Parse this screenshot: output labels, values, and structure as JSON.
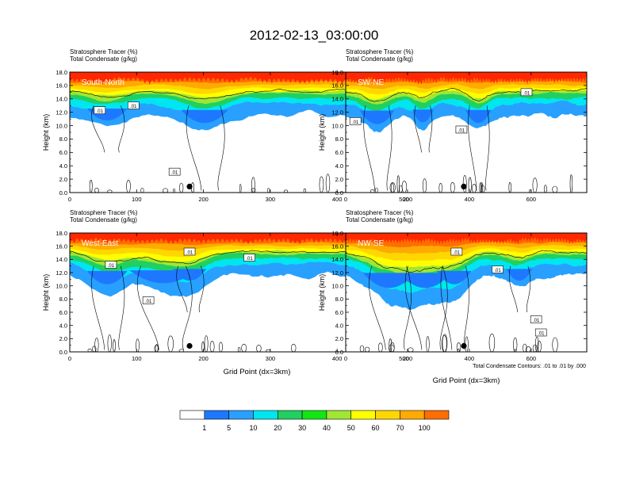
{
  "title": "2012-02-13_03:00:00",
  "colors": {
    "levels": [
      "#ffffff",
      "#1e78ff",
      "#28a0ff",
      "#00e6f0",
      "#20d060",
      "#14e614",
      "#a0e632",
      "#ffff00",
      "#ffd700",
      "#ffaa00",
      "#ff6e00",
      "#ff2800"
    ]
  },
  "chart_data": [
    {
      "type": "heatmap",
      "label": "South-North",
      "subtitle_line1": "Stratosphere Tracer   (%)",
      "subtitle_line2": "Total Condensate   (g/kg)",
      "ylabel": "Height (km)",
      "xlabel": "",
      "xlim": [
        0,
        560
      ],
      "ylim": [
        0,
        18
      ],
      "xticks": [
        "0",
        "100",
        "200",
        "300",
        "400",
        "500"
      ],
      "yticks": [
        "0.0",
        "2.0",
        "4.0",
        "6.0",
        "8.0",
        "10.0",
        "12.0",
        "14.0",
        "16.0",
        "18.0"
      ],
      "contour_labels": [
        ".01",
        ".01",
        ".01"
      ]
    },
    {
      "type": "heatmap",
      "label": "SW-NE",
      "subtitle_line1": "Stratosphere Tracer   (%)",
      "subtitle_line2": "Total Condensate   (g/kg)",
      "ylabel": "Height (km)",
      "xlabel": "",
      "xlim": [
        0,
        780
      ],
      "ylim": [
        0,
        18
      ],
      "xticks": [
        "0",
        "200",
        "400",
        "600"
      ],
      "yticks": [
        "0.0",
        "2.0",
        "4.0",
        "6.0",
        "8.0",
        "10.0",
        "12.0",
        "14.0",
        "16.0",
        "18.0"
      ],
      "contour_labels": [
        ".01",
        ".01",
        ".01"
      ]
    },
    {
      "type": "heatmap",
      "label": "West-East",
      "subtitle_line1": "Stratosphere Tracer   (%)",
      "subtitle_line2": "Total Condensate   (g/kg)",
      "ylabel": "Height (km)",
      "xlabel": "Grid Point (dx=3km)",
      "xlim": [
        0,
        560
      ],
      "ylim": [
        0,
        18
      ],
      "xticks": [
        "0",
        "100",
        "200",
        "300",
        "400",
        "500"
      ],
      "yticks": [
        "0.0",
        "2.0",
        "4.0",
        "6.0",
        "8.0",
        "10.0",
        "12.0",
        "14.0",
        "16.0",
        "18.0"
      ],
      "contour_labels": [
        ".01",
        ".01",
        ".01",
        ".01"
      ]
    },
    {
      "type": "heatmap",
      "label": "NW-SE",
      "subtitle_line1": "Stratosphere Tracer   (%)",
      "subtitle_line2": "Total Condensate   (g/kg)",
      "ylabel": "Height (km)",
      "xlabel": "Grid Point (dx=3km)",
      "xlim": [
        0,
        780
      ],
      "ylim": [
        0,
        18
      ],
      "xticks": [
        "0",
        "200",
        "400",
        "600"
      ],
      "yticks": [
        "0.0",
        "2.0",
        "4.0",
        "6.0",
        "8.0",
        "10.0",
        "12.0",
        "14.0",
        "16.0",
        "18.0"
      ],
      "contour_labels": [
        ".01",
        ".01",
        ".01",
        ".01"
      ]
    }
  ],
  "contour_note": "Total Condensate Contours: .01 to .01 by .000",
  "colorbar": {
    "labels": [
      "1",
      "5",
      "10",
      "20",
      "30",
      "40",
      "50",
      "60",
      "70",
      "100"
    ]
  }
}
